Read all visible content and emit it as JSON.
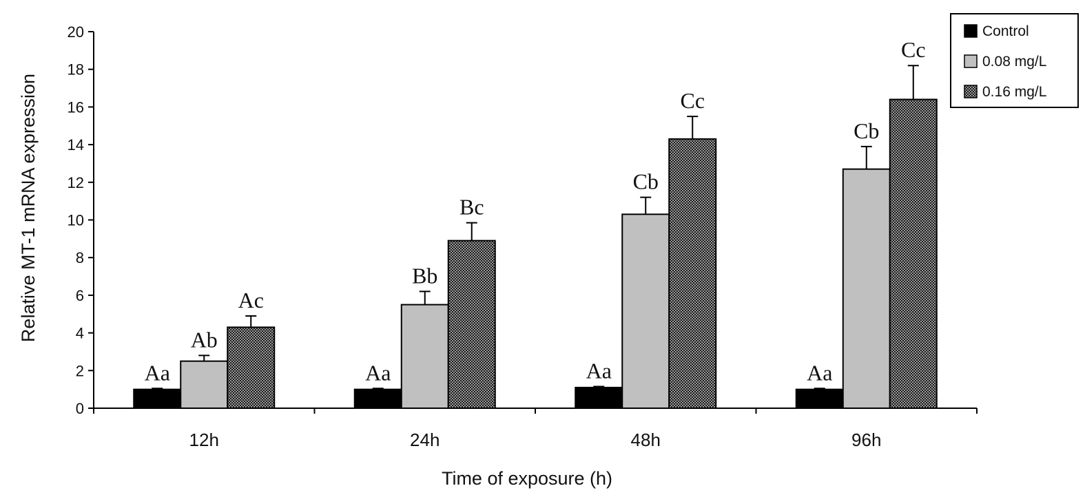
{
  "chart_data": {
    "type": "bar",
    "title": "",
    "xlabel": "Time of exposure (h)",
    "ylabel": "Relative MT-1 mRNA expression",
    "ylim": [
      0,
      20
    ],
    "yticks": [
      0,
      2,
      4,
      6,
      8,
      10,
      12,
      14,
      16,
      18,
      20
    ],
    "categories": [
      "12h",
      "24h",
      "48h",
      "96h"
    ],
    "legend_position": "top-right",
    "series": [
      {
        "name": "Control",
        "values": [
          1.0,
          1.0,
          1.1,
          1.0
        ],
        "errors": [
          0.05,
          0.05,
          0.05,
          0.05
        ],
        "labels": [
          "Aa",
          "Aa",
          "Aa",
          "Aa"
        ],
        "fill": "#000000",
        "pattern": "solid"
      },
      {
        "name": "0.08 mg/L",
        "values": [
          2.5,
          5.5,
          10.3,
          12.7
        ],
        "errors": [
          0.3,
          0.7,
          0.9,
          1.2
        ],
        "labels": [
          "Ab",
          "Bb",
          "Cb",
          "Cb"
        ],
        "fill": "#c0c0c0",
        "pattern": "solid"
      },
      {
        "name": "0.16 mg/L",
        "values": [
          4.3,
          8.9,
          14.3,
          16.4
        ],
        "errors": [
          0.6,
          0.95,
          1.2,
          1.8
        ],
        "labels": [
          "Ac",
          "Bc",
          "Cc",
          "Cc"
        ],
        "fill": "#555555",
        "pattern": "checker"
      }
    ]
  }
}
